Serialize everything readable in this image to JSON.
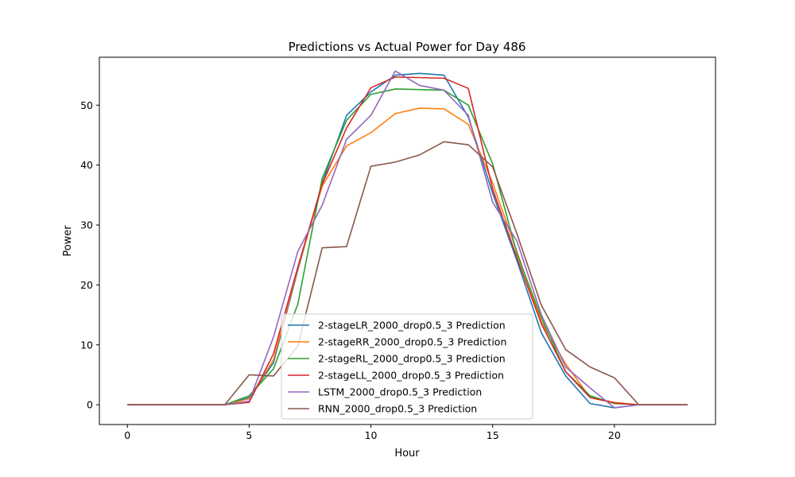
{
  "chart_data": {
    "type": "line",
    "title": "Predictions vs Actual Power for Day 486",
    "xlabel": "Hour",
    "ylabel": "Power",
    "xlim": [
      -1.15,
      24.15
    ],
    "ylim": [
      -3.3,
      58.0
    ],
    "xticks": [
      0,
      5,
      10,
      15,
      20
    ],
    "yticks": [
      0,
      10,
      20,
      30,
      40,
      50
    ],
    "grid": false,
    "legend_position": "lower center",
    "x": [
      0,
      1,
      2,
      3,
      4,
      5,
      6,
      7,
      8,
      9,
      10,
      11,
      12,
      13,
      14,
      15,
      16,
      17,
      18,
      19,
      20,
      21,
      22,
      23
    ],
    "series": [
      {
        "name": "2-stageLR_2000_drop0.5_3 Prediction",
        "color": "#1f77b4",
        "values": [
          0,
          0,
          0,
          0,
          0,
          1.2,
          7.0,
          22.5,
          37.0,
          48.3,
          52.2,
          55.0,
          55.3,
          55.0,
          48.0,
          35.3,
          24.0,
          12.0,
          4.8,
          0.2,
          -0.5,
          0,
          0,
          0
        ]
      },
      {
        "name": "2-stageRR_2000_drop0.5_3 Prediction",
        "color": "#ff7f0e",
        "values": [
          0,
          0,
          0,
          0,
          0,
          1.0,
          7.5,
          22.8,
          36.5,
          43.2,
          45.4,
          48.6,
          49.5,
          49.4,
          46.8,
          37.0,
          25.5,
          13.8,
          6.8,
          1.2,
          0.4,
          0,
          0,
          0
        ]
      },
      {
        "name": "2-stageRL_2000_drop0.5_3 Prediction",
        "color": "#2ca02c",
        "values": [
          0,
          0,
          0,
          0,
          0,
          1.5,
          6.0,
          16.8,
          37.8,
          47.5,
          51.8,
          52.7,
          52.6,
          52.5,
          50.0,
          40.2,
          25.2,
          14.5,
          5.5,
          1.5,
          0.2,
          0,
          0,
          0
        ]
      },
      {
        "name": "2-stageLL_2000_drop0.5_3 Prediction",
        "color": "#d62728",
        "values": [
          0,
          0,
          0,
          0,
          0,
          0.4,
          8.5,
          23.0,
          36.8,
          46.2,
          52.9,
          54.7,
          54.6,
          54.5,
          52.8,
          36.0,
          24.5,
          13.5,
          5.5,
          1.2,
          0.3,
          0,
          0,
          0
        ]
      },
      {
        "name": "LSTM_2000_drop0.5_3 Prediction",
        "color": "#9467bd",
        "values": [
          0,
          0,
          0,
          0,
          0,
          0.6,
          11.3,
          25.6,
          33.3,
          44.3,
          48.3,
          55.7,
          53.3,
          52.5,
          48.3,
          33.8,
          27.3,
          15.0,
          6.3,
          2.8,
          -0.5,
          0,
          0,
          0
        ]
      },
      {
        "name": "RNN_2000_drop0.5_3 Prediction",
        "color": "#8c564b",
        "values": [
          0,
          0,
          0,
          0,
          0,
          5.0,
          4.8,
          9.8,
          26.2,
          26.4,
          39.8,
          40.5,
          41.7,
          43.9,
          43.4,
          39.7,
          28.5,
          16.6,
          9.2,
          6.3,
          4.5,
          0,
          0,
          0
        ]
      }
    ]
  }
}
